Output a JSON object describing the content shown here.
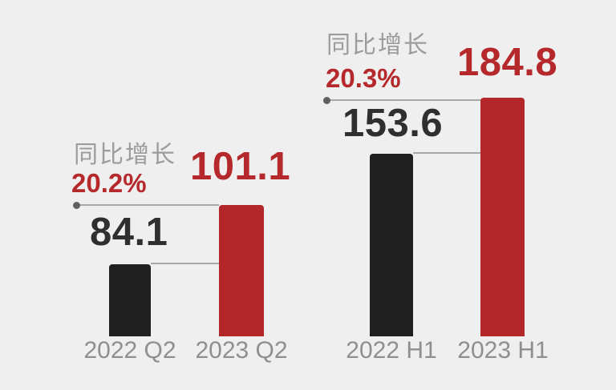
{
  "colors": {
    "red": "#b3262a",
    "red_text": "#b5292c",
    "black_bar": "#202020",
    "dark_text": "#2f2f2f",
    "gray_text": "#9c9c9c",
    "axis_text": "#8f8f8f",
    "line": "#a8a8a8",
    "dot": "#606060",
    "background": "#efefef"
  },
  "chart_data": {
    "type": "bar",
    "title": "",
    "legend": "none",
    "axes": {
      "x_axis_visible": false,
      "y_axis_visible": false,
      "gridlines": false
    },
    "layout_note": "stylized infographic, two grouped comparisons, bar heights not strictly to scale, value leader lines with end dots",
    "groups": [
      {
        "growth_label": "同比增长",
        "growth_pct": "20.2%",
        "categories": [
          "2022 Q2",
          "2023 Q2"
        ],
        "values": [
          84.1,
          101.1
        ],
        "bars": [
          {
            "category": "2022 Q2",
            "value": 84.1,
            "label": "84.1",
            "color": "#202020"
          },
          {
            "category": "2023 Q2",
            "value": 101.1,
            "label": "101.1",
            "color": "#b3262a"
          }
        ]
      },
      {
        "growth_label": "同比增长",
        "growth_pct": "20.3%",
        "categories": [
          "2022 H1",
          "2023 H1"
        ],
        "values": [
          153.6,
          184.8
        ],
        "bars": [
          {
            "category": "2022 H1",
            "value": 153.6,
            "label": "153.6",
            "color": "#202020"
          },
          {
            "category": "2023 H1",
            "value": 184.8,
            "label": "184.8",
            "color": "#b3262a"
          }
        ]
      }
    ]
  }
}
